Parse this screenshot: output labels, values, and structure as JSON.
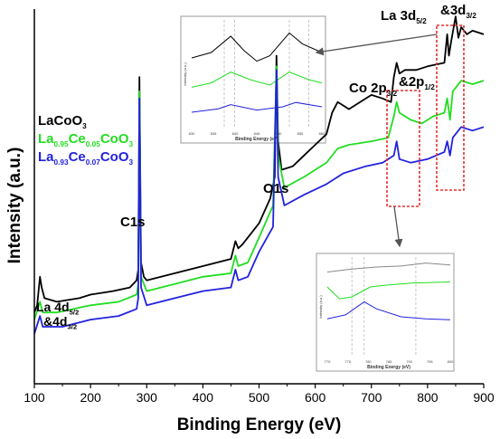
{
  "chart_data": {
    "type": "line",
    "title": "",
    "xlabel": "Binding Energy (eV)",
    "ylabel": "Intensity (a.u.)",
    "xlim": [
      100,
      900
    ],
    "ylim": [
      0,
      100
    ],
    "xticks": [
      100,
      200,
      300,
      400,
      500,
      600,
      700,
      800,
      900
    ],
    "grid": false,
    "legend_position": "middle-left",
    "series": [
      {
        "name": "LaCoO3",
        "color": "#000000",
        "points": [
          [
            100,
            20
          ],
          [
            105,
            22
          ],
          [
            110,
            30
          ],
          [
            113,
            27
          ],
          [
            118,
            24
          ],
          [
            140,
            23
          ],
          [
            180,
            24
          ],
          [
            200,
            25
          ],
          [
            240,
            26
          ],
          [
            270,
            27
          ],
          [
            282,
            29
          ],
          [
            285,
            32
          ],
          [
            287,
            86
          ],
          [
            290,
            34
          ],
          [
            295,
            30
          ],
          [
            300,
            29
          ],
          [
            350,
            31
          ],
          [
            400,
            33
          ],
          [
            450,
            35
          ],
          [
            458,
            40
          ],
          [
            463,
            38
          ],
          [
            470,
            39
          ],
          [
            500,
            45
          ],
          [
            520,
            52
          ],
          [
            528,
            58
          ],
          [
            531,
            92
          ],
          [
            534,
            68
          ],
          [
            540,
            60
          ],
          [
            560,
            61
          ],
          [
            580,
            64
          ],
          [
            600,
            67
          ],
          [
            620,
            70
          ],
          [
            630,
            76
          ],
          [
            640,
            79
          ],
          [
            660,
            77
          ],
          [
            680,
            79
          ],
          [
            700,
            81
          ],
          [
            720,
            80
          ],
          [
            735,
            79
          ],
          [
            740,
            86
          ],
          [
            745,
            90
          ],
          [
            750,
            87
          ],
          [
            760,
            88
          ],
          [
            780,
            88
          ],
          [
            800,
            89
          ],
          [
            830,
            90
          ],
          [
            835,
            98
          ],
          [
            838,
            92
          ],
          [
            842,
            96
          ],
          [
            850,
            103
          ],
          [
            855,
            97
          ],
          [
            860,
            100
          ],
          [
            870,
            98
          ],
          [
            880,
            99
          ],
          [
            900,
            98
          ]
        ]
      },
      {
        "name": "La0.95Ce0.05CoO3",
        "color": "#22dd22",
        "points": [
          [
            100,
            18
          ],
          [
            110,
            23
          ],
          [
            115,
            20
          ],
          [
            140,
            20
          ],
          [
            200,
            22
          ],
          [
            250,
            23
          ],
          [
            282,
            25
          ],
          [
            285,
            28
          ],
          [
            287,
            82
          ],
          [
            290,
            30
          ],
          [
            300,
            26
          ],
          [
            350,
            28
          ],
          [
            400,
            30
          ],
          [
            450,
            31
          ],
          [
            458,
            36
          ],
          [
            463,
            33
          ],
          [
            480,
            34
          ],
          [
            500,
            41
          ],
          [
            525,
            50
          ],
          [
            531,
            89
          ],
          [
            534,
            64
          ],
          [
            545,
            55
          ],
          [
            580,
            58
          ],
          [
            600,
            60
          ],
          [
            620,
            62
          ],
          [
            640,
            66
          ],
          [
            660,
            67
          ],
          [
            700,
            68
          ],
          [
            730,
            69
          ],
          [
            740,
            75
          ],
          [
            745,
            79
          ],
          [
            750,
            76
          ],
          [
            770,
            74
          ],
          [
            790,
            73
          ],
          [
            810,
            75
          ],
          [
            830,
            76
          ],
          [
            835,
            80
          ],
          [
            840,
            74
          ],
          [
            845,
            82
          ],
          [
            860,
            85
          ],
          [
            880,
            84
          ],
          [
            900,
            85
          ]
        ]
      },
      {
        "name": "La0.93Ce0.07CoO3",
        "color": "#2222dd",
        "points": [
          [
            100,
            14
          ],
          [
            110,
            19
          ],
          [
            115,
            16
          ],
          [
            150,
            16
          ],
          [
            200,
            18
          ],
          [
            250,
            19
          ],
          [
            282,
            21
          ],
          [
            285,
            24
          ],
          [
            287,
            80
          ],
          [
            290,
            27
          ],
          [
            300,
            22
          ],
          [
            350,
            24
          ],
          [
            400,
            26
          ],
          [
            450,
            27
          ],
          [
            458,
            32
          ],
          [
            463,
            29
          ],
          [
            480,
            30
          ],
          [
            500,
            37
          ],
          [
            525,
            44
          ],
          [
            531,
            88
          ],
          [
            534,
            58
          ],
          [
            545,
            50
          ],
          [
            580,
            53
          ],
          [
            620,
            56
          ],
          [
            650,
            59
          ],
          [
            690,
            61
          ],
          [
            720,
            62
          ],
          [
            740,
            64
          ],
          [
            745,
            68
          ],
          [
            750,
            63
          ],
          [
            770,
            62
          ],
          [
            800,
            63
          ],
          [
            830,
            65
          ],
          [
            835,
            68
          ],
          [
            840,
            64
          ],
          [
            845,
            69
          ],
          [
            860,
            72
          ],
          [
            880,
            71
          ],
          [
            900,
            72
          ]
        ]
      }
    ],
    "legend": [
      {
        "text": "LaCoO3",
        "color": "#000000"
      },
      {
        "text": "La0.95Ce0.05CoO3",
        "color": "#22dd22"
      },
      {
        "text": "La0.93Ce0.07CoO3",
        "color": "#2222dd"
      }
    ],
    "annotations": [
      {
        "id": "la4d",
        "text": "La 4d5/2 &4d3/2"
      },
      {
        "id": "c1s",
        "text": "C1s"
      },
      {
        "id": "o1s",
        "text": "O1s"
      },
      {
        "id": "co2p",
        "text": "Co 2p3/2&2p1/2"
      },
      {
        "id": "la3d",
        "text": "La 3d5/2&3d3/2"
      }
    ],
    "insets": [
      {
        "id": "la3d_inset",
        "xlabel": "Binding Energy (eV)",
        "ylabel": "Intensity (a.u.)",
        "xticks": [
          "830",
          "835",
          "840",
          "845",
          "850",
          "855",
          "860"
        ],
        "vlines": [
          0.25,
          0.33,
          0.75,
          0.9
        ]
      },
      {
        "id": "co2p_inset",
        "xlabel": "Binding Energy (eV)",
        "ylabel": "Intensity (a.u.)",
        "xticks": [
          "770",
          "775",
          "780",
          "785",
          "790",
          "795",
          "800"
        ],
        "vlines": [
          0.2,
          0.3,
          0.72
        ]
      }
    ]
  }
}
